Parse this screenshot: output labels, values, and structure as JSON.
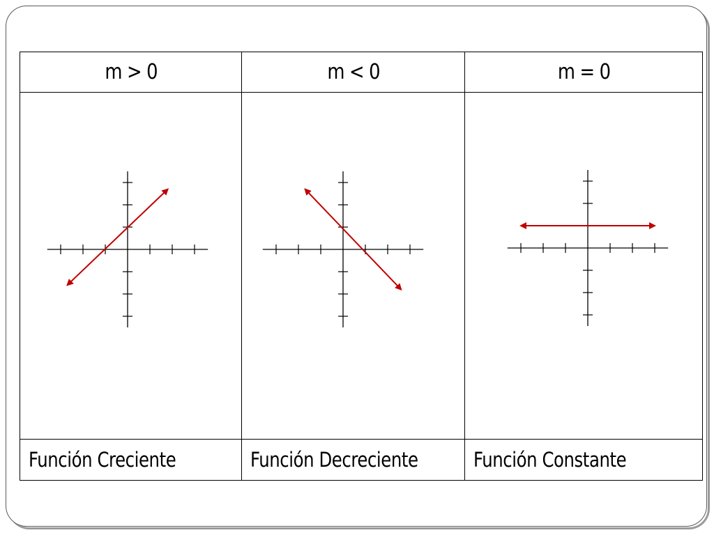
{
  "columns": [
    {
      "condition": "m > 0",
      "caption": "Función Creciente",
      "line": {
        "x1": -2.7,
        "y1": -1.6,
        "x2": 1.8,
        "y2": 2.7
      }
    },
    {
      "condition": "m < 0",
      "caption": "Función Decreciente",
      "line": {
        "x1": -1.7,
        "y1": 2.7,
        "x2": 2.6,
        "y2": -1.8
      }
    },
    {
      "condition": "m = 0",
      "caption": "Función Constante",
      "line": {
        "x1": -3,
        "y1": 1,
        "x2": 3,
        "y2": 1
      }
    }
  ],
  "colors": {
    "line": "#c00000",
    "axis": "#000000",
    "border": "#000000"
  }
}
